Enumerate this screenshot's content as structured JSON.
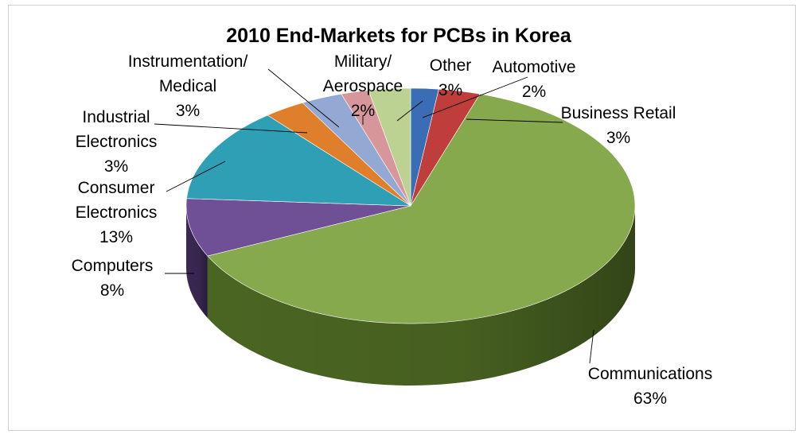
{
  "chart_data": {
    "type": "pie",
    "title": "2010 End-Markets for PCBs in Korea",
    "slices": [
      {
        "label": "Automotive",
        "label_lines": [
          "Automotive",
          "2%"
        ],
        "value": 2,
        "color": "#3a6db4",
        "side": "#1d3a66"
      },
      {
        "label": "Business Retail",
        "label_lines": [
          "Business Retail",
          "3%"
        ],
        "value": 3,
        "color": "#bf3d3a",
        "side": "#6a1e1c"
      },
      {
        "label": "Communications",
        "label_lines": [
          "Communications",
          "63%"
        ],
        "value": 63,
        "color": "#86a94d",
        "side": "#4e6a24"
      },
      {
        "label": "Computers",
        "label_lines": [
          "Computers",
          "8%"
        ],
        "value": 8,
        "color": "#6f4f95",
        "side": "#3d2a56"
      },
      {
        "label": "Consumer Electronics",
        "label_lines": [
          "Consumer",
          "Electronics",
          "13%"
        ],
        "value": 13,
        "color": "#2e9fb5",
        "side": "#175a68"
      },
      {
        "label": "Industrial Electronics",
        "label_lines": [
          "Industrial",
          "Electronics",
          "3%"
        ],
        "value": 3,
        "color": "#e07f2b",
        "side": "#7d4210"
      },
      {
        "label": "Instrumentation/ Medical",
        "label_lines": [
          "Instrumentation/",
          "Medical",
          "3%"
        ],
        "value": 3,
        "color": "#93a9d4",
        "side": "#52668c"
      },
      {
        "label": "Military/ Aerospace",
        "label_lines": [
          "Military/",
          "Aerospace",
          "2%"
        ],
        "value": 2,
        "color": "#d7979a",
        "side": "#8a5557"
      },
      {
        "label": "Other",
        "label_lines": [
          "Other",
          "3%"
        ],
        "value": 3,
        "color": "#bcd293",
        "side": "#7a8e57"
      }
    ],
    "legend": "none"
  }
}
